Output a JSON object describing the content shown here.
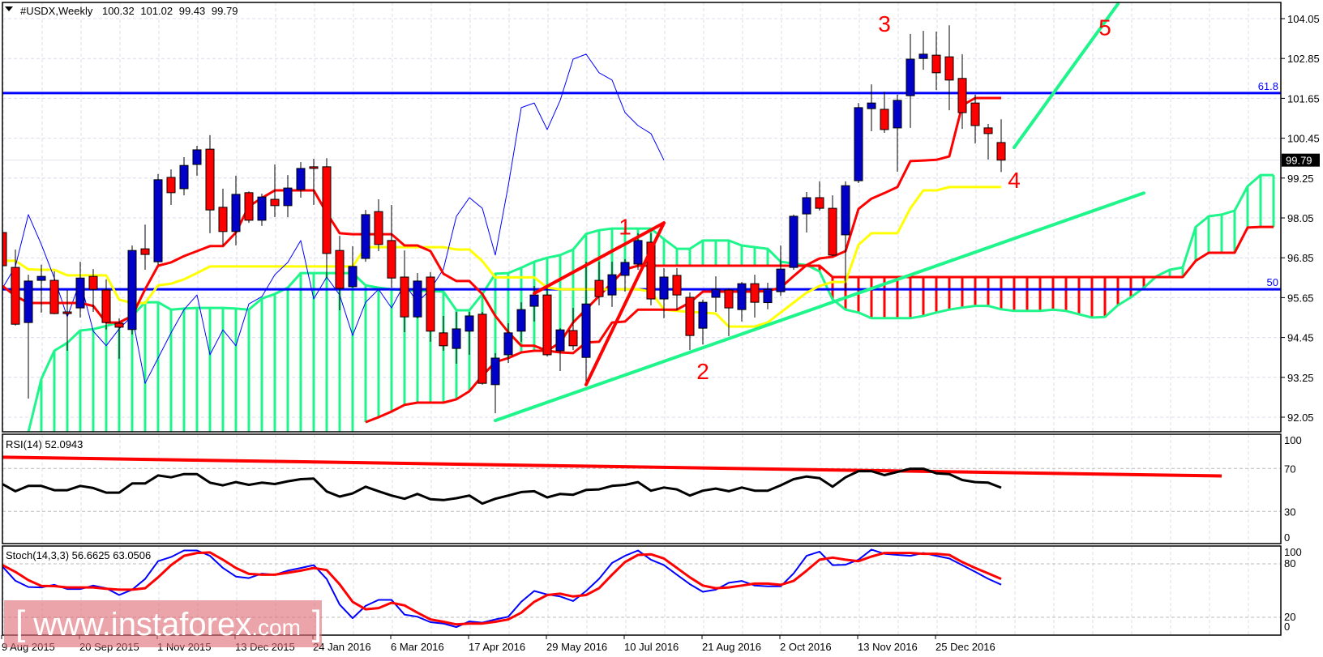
{
  "header": {
    "symbol": "#USDX,Weekly",
    "open": "100.32",
    "high": "101.02",
    "low": "99.43",
    "close": "99.79"
  },
  "rsi_panel": {
    "label": "RSI(14) 52.0943"
  },
  "stoch_panel": {
    "label": "Stoch(14,3,3) 56.6625 63.0506"
  },
  "watermark": {
    "open": "[",
    "text": "www.instaforex",
    "suffix": ".com",
    "close": "]"
  },
  "colors": {
    "bull": "#0000c8",
    "bear": "#ff0000",
    "tenkan": "#ff0000",
    "kijun": "#ffff00",
    "chikou": "#0000ff",
    "cloud_bull": "#1ef58a",
    "cloud_bear": "#ff0000",
    "level": "#0000ff",
    "rsi": "#000000",
    "stoch_k": "#0000ff",
    "stoch_d": "#ff0000"
  },
  "chart_data": {
    "type": "candlestick",
    "title": "#USDX,Weekly",
    "price_ticks": [
      "104.05",
      "102.85",
      "101.65",
      "100.45",
      "99.25",
      "98.05",
      "96.85",
      "95.65",
      "94.45",
      "93.25",
      "92.05"
    ],
    "ylim": [
      91.5,
      104.5
    ],
    "last_price": "99.79",
    "date_ticks": [
      "9 Aug 2015",
      "20 Sep 2015",
      "1 Nov 2015",
      "13 Dec 2015",
      "24 Jan 2016",
      "6 Mar 2016",
      "17 Apr 2016",
      "29 May 2016",
      "10 Jul 2016",
      "21 Aug 2016",
      "2 Oct 2016",
      "13 Nov 2016",
      "25 Dec 2016"
    ],
    "grid": true,
    "candles_columns": [
      "date",
      "open",
      "high",
      "low",
      "close"
    ],
    "candles": [
      [
        "2015-08-09",
        97.61,
        97.95,
        96.3,
        96.61
      ],
      [
        "2015-08-16",
        96.56,
        97.1,
        94.81,
        94.85
      ],
      [
        "2015-08-23",
        94.9,
        96.34,
        92.61,
        96.15
      ],
      [
        "2015-08-30",
        96.17,
        96.64,
        95.2,
        96.29
      ],
      [
        "2015-09-06",
        96.17,
        96.44,
        95.15,
        95.17
      ],
      [
        "2015-09-13",
        95.22,
        95.88,
        94.05,
        95.17
      ],
      [
        "2015-09-20",
        95.34,
        96.73,
        95.05,
        96.24
      ],
      [
        "2015-09-27",
        96.29,
        96.51,
        95.22,
        95.9
      ],
      [
        "2015-10-04",
        95.88,
        96.2,
        94.69,
        94.9
      ],
      [
        "2015-10-11",
        94.88,
        95.03,
        93.81,
        94.76
      ],
      [
        "2015-10-18",
        94.69,
        97.22,
        94.54,
        97.07
      ],
      [
        "2015-10-25",
        97.12,
        97.85,
        96.49,
        96.95
      ],
      [
        "2015-11-01",
        96.73,
        99.37,
        96.64,
        99.2
      ],
      [
        "2015-11-08",
        99.27,
        99.51,
        98.44,
        98.81
      ],
      [
        "2015-11-15",
        98.93,
        99.88,
        98.73,
        99.63
      ],
      [
        "2015-11-22",
        99.66,
        100.22,
        99.32,
        100.1
      ],
      [
        "2015-11-29",
        100.12,
        100.54,
        97.59,
        98.29
      ],
      [
        "2015-12-06",
        98.37,
        98.93,
        97.22,
        97.64
      ],
      [
        "2015-12-13",
        97.64,
        99.32,
        97.22,
        98.76
      ],
      [
        "2015-12-20",
        98.81,
        98.85,
        97.9,
        97.98
      ],
      [
        "2015-12-27",
        97.98,
        98.78,
        97.81,
        98.68
      ],
      [
        "2016-01-03",
        98.61,
        99.66,
        98.07,
        98.42
      ],
      [
        "2016-01-10",
        98.42,
        99.34,
        98.07,
        98.95
      ],
      [
        "2016-01-17",
        98.9,
        99.73,
        98.66,
        99.54
      ],
      [
        "2016-01-24",
        99.59,
        99.83,
        98.44,
        99.54
      ],
      [
        "2016-01-31",
        99.59,
        99.85,
        96.24,
        96.98
      ],
      [
        "2016-02-07",
        97.07,
        97.51,
        95.27,
        95.93
      ],
      [
        "2016-02-14",
        95.98,
        97.2,
        95.95,
        96.59
      ],
      [
        "2016-02-21",
        96.83,
        98.29,
        96.73,
        98.15
      ],
      [
        "2016-02-28",
        98.24,
        98.61,
        97.05,
        97.25
      ],
      [
        "2016-03-06",
        97.37,
        98.44,
        95.95,
        96.24
      ],
      [
        "2016-03-13",
        96.27,
        97.07,
        94.61,
        95.07
      ],
      [
        "2016-03-20",
        95.07,
        96.39,
        95.03,
        96.15
      ],
      [
        "2016-03-27",
        96.27,
        96.42,
        94.32,
        94.64
      ],
      [
        "2016-04-03",
        94.59,
        95.1,
        94.05,
        94.2
      ],
      [
        "2016-04-10",
        94.12,
        95.22,
        93.66,
        94.71
      ],
      [
        "2016-04-17",
        94.64,
        95.22,
        93.93,
        95.1
      ],
      [
        "2016-04-24",
        95.15,
        95.22,
        93.03,
        93.07
      ],
      [
        "2016-05-01",
        93.03,
        93.98,
        92.17,
        93.83
      ],
      [
        "2016-05-08",
        93.93,
        94.88,
        93.68,
        94.59
      ],
      [
        "2016-05-15",
        94.64,
        95.51,
        94.32,
        95.29
      ],
      [
        "2016-05-22",
        95.39,
        96.0,
        94.93,
        95.73
      ],
      [
        "2016-05-29",
        95.73,
        96.0,
        93.88,
        93.93
      ],
      [
        "2016-06-05",
        94.05,
        94.73,
        93.44,
        94.68
      ],
      [
        "2016-06-12",
        94.66,
        95.34,
        94.07,
        94.2
      ],
      [
        "2016-06-19",
        93.85,
        96.73,
        93.03,
        95.46
      ],
      [
        "2016-06-26",
        96.17,
        96.73,
        95.42,
        95.68
      ],
      [
        "2016-07-03",
        95.73,
        96.73,
        95.37,
        96.34
      ],
      [
        "2016-07-10",
        96.32,
        96.81,
        95.83,
        96.71
      ],
      [
        "2016-07-17",
        96.66,
        97.59,
        96.49,
        97.37
      ],
      [
        "2016-07-24",
        97.32,
        97.59,
        95.42,
        95.61
      ],
      [
        "2016-07-31",
        95.61,
        96.54,
        95.03,
        96.27
      ],
      [
        "2016-08-07",
        96.32,
        96.54,
        95.27,
        95.73
      ],
      [
        "2016-08-14",
        95.66,
        95.81,
        94.07,
        94.51
      ],
      [
        "2016-08-21",
        94.73,
        95.59,
        94.24,
        95.51
      ],
      [
        "2016-08-28",
        95.66,
        96.29,
        95.22,
        95.9
      ],
      [
        "2016-09-04",
        95.88,
        95.93,
        94.49,
        95.34
      ],
      [
        "2016-09-11",
        95.29,
        96.12,
        94.93,
        96.07
      ],
      [
        "2016-09-18",
        96.07,
        96.34,
        95.05,
        95.51
      ],
      [
        "2016-09-25",
        95.5,
        96.1,
        95.3,
        95.9
      ],
      [
        "2016-10-02",
        95.83,
        97.22,
        95.7,
        96.51
      ],
      [
        "2016-10-09",
        96.56,
        98.15,
        96.49,
        98.1
      ],
      [
        "2016-10-16",
        98.17,
        98.83,
        97.61,
        98.66
      ],
      [
        "2016-10-23",
        98.66,
        99.15,
        98.27,
        98.34
      ],
      [
        "2016-10-30",
        98.34,
        98.73,
        96.9,
        96.93
      ],
      [
        "2016-11-06",
        97.54,
        99.15,
        95.85,
        99.02
      ],
      [
        "2016-11-13",
        99.17,
        101.51,
        99.1,
        101.37
      ],
      [
        "2016-11-20",
        101.34,
        102.07,
        100.66,
        101.51
      ],
      [
        "2016-11-27",
        101.32,
        101.85,
        100.61,
        100.71
      ],
      [
        "2016-12-04",
        100.76,
        101.76,
        99.44,
        101.59
      ],
      [
        "2016-12-11",
        101.73,
        103.59,
        100.76,
        102.83
      ],
      [
        "2016-12-18",
        102.85,
        103.68,
        102.51,
        102.98
      ],
      [
        "2016-12-25",
        102.95,
        103.66,
        101.9,
        102.42
      ],
      [
        "2017-01-01",
        102.9,
        103.85,
        101.29,
        102.2
      ],
      [
        "2017-01-08",
        102.25,
        102.98,
        100.73,
        101.22
      ],
      [
        "2017-01-15",
        101.51,
        101.76,
        100.29,
        100.83
      ],
      [
        "2017-01-22",
        100.76,
        100.88,
        99.81,
        100.59
      ],
      [
        "2017-01-29",
        100.32,
        101.02,
        99.43,
        99.79
      ]
    ],
    "ichimoku": {
      "tenkan": [
        96.0,
        95.7,
        95.49,
        95.49,
        95.49,
        95.49,
        95.49,
        95.4,
        94.9,
        94.9,
        95.1,
        95.9,
        96.61,
        96.71,
        96.9,
        97.05,
        97.2,
        97.2,
        97.61,
        98.4,
        98.65,
        98.88,
        98.88,
        98.88,
        98.88,
        98.2,
        97.59,
        97.56,
        97.56,
        97.56,
        97.56,
        97.22,
        97.22,
        97.05,
        96.37,
        96.15,
        96.15,
        95.76,
        95.1,
        94.61,
        94.2,
        94.2,
        94.05,
        94.0,
        93.98,
        94.3,
        94.32,
        94.9,
        94.93,
        95.29,
        95.29,
        95.29,
        95.29,
        95.5,
        95.83,
        95.83,
        95.83,
        95.83,
        95.83,
        95.85,
        95.95,
        96.3,
        96.63,
        96.83,
        96.88,
        97.05,
        98.32,
        98.63,
        98.8,
        98.98,
        99.76,
        99.78,
        99.8,
        99.9,
        101.44,
        101.66,
        101.66,
        101.66
      ],
      "kijun": [
        96.76,
        96.76,
        96.5,
        96.49,
        96.49,
        96.32,
        96.32,
        96.32,
        96.32,
        95.59,
        95.49,
        95.49,
        96.02,
        96.07,
        96.2,
        96.39,
        96.59,
        96.59,
        96.59,
        96.59,
        96.59,
        96.59,
        96.59,
        96.59,
        96.59,
        96.59,
        96.59,
        96.59,
        97.17,
        97.17,
        97.17,
        97.17,
        97.17,
        97.17,
        97.17,
        97.1,
        97.1,
        96.75,
        96.26,
        96.26,
        96.26,
        96.26,
        95.95,
        95.9,
        95.9,
        95.9,
        95.9,
        95.9,
        95.9,
        95.9,
        95.83,
        95.29,
        95.25,
        95.22,
        95.2,
        95.17,
        94.78,
        94.78,
        94.78,
        94.9,
        95.2,
        95.5,
        95.8,
        96.0,
        96.12,
        96.12,
        97.24,
        97.59,
        97.59,
        97.59,
        98.34,
        98.88,
        98.88,
        98.98,
        98.98,
        98.98,
        98.98,
        98.98
      ],
      "senkou_a": [
        null,
        null,
        91.6,
        93.2,
        94.05,
        94.29,
        94.66,
        94.7,
        94.8,
        94.9,
        95.1,
        95.51,
        95.51,
        95.29,
        95.32,
        95.34,
        95.34,
        95.34,
        95.32,
        95.29,
        95.62,
        95.76,
        95.95,
        96.39,
        96.39,
        96.39,
        96.39,
        96.39,
        96.02,
        95.95,
        95.9,
        95.88,
        95.86,
        95.85,
        95.83,
        95.27,
        95.27,
        95.76,
        96.37,
        96.39,
        96.55,
        96.73,
        96.85,
        96.93,
        97.1,
        97.57,
        97.68,
        97.73,
        97.73,
        97.73,
        97.73,
        97.41,
        97.12,
        97.12,
        97.37,
        97.37,
        97.37,
        97.22,
        97.17,
        97.12,
        96.73,
        96.68,
        96.63,
        96.44,
        95.6,
        95.29,
        95.2,
        95.03,
        95.03,
        95.03,
        95.03,
        95.1,
        95.2,
        95.29,
        95.35,
        95.4,
        95.4,
        95.3,
        95.25,
        95.25,
        95.25,
        95.29,
        95.25,
        95.15,
        95.05,
        95.07,
        95.42,
        95.66,
        95.95,
        96.3,
        96.49,
        96.56,
        97.78,
        98.1,
        98.15,
        98.27,
        99.0,
        99.34,
        99.34
      ],
      "senkou_b": [
        null,
        null,
        null,
        null,
        null,
        null,
        null,
        null,
        null,
        null,
        null,
        null,
        null,
        null,
        null,
        null,
        null,
        null,
        null,
        null,
        null,
        null,
        null,
        null,
        null,
        null,
        null,
        null,
        91.9,
        92.05,
        92.22,
        92.42,
        92.49,
        92.49,
        92.49,
        92.59,
        92.83,
        93.3,
        93.71,
        93.83,
        94.0,
        94.05,
        94.05,
        94.3,
        94.9,
        95.3,
        95.7,
        96.1,
        96.5,
        96.61,
        96.61,
        96.61,
        96.61,
        96.61,
        96.61,
        96.61,
        96.61,
        96.61,
        96.61,
        96.61,
        96.61,
        96.61,
        96.61,
        96.61,
        96.27,
        96.27,
        96.27,
        96.27,
        96.27,
        96.27,
        96.27,
        96.27,
        96.27,
        96.27,
        96.27,
        96.27,
        96.27,
        96.27,
        96.27,
        96.27,
        96.27,
        96.27,
        96.27,
        96.27,
        96.27,
        96.27,
        96.27,
        96.27,
        96.27,
        96.27,
        96.27,
        96.27,
        96.76,
        97.0,
        97.0,
        97.0,
        97.76,
        97.78,
        97.78
      ]
    },
    "levels": [
      {
        "label": "61.8",
        "price": 101.81
      },
      {
        "label": "50",
        "price": 95.9
      }
    ],
    "trendlines": [
      {
        "color": "#1ef58a",
        "from": [
          "2016-05-01",
          91.95
        ],
        "to": [
          "2017-04-16",
          98.8
        ]
      },
      {
        "color": "#1ef58a",
        "from": [
          "2017-02-05",
          100.17
        ],
        "to": [
          "2017-04-02",
          104.49
        ]
      },
      {
        "color": "#ff0000",
        "from": [
          "2016-05-22",
          95.78
        ],
        "to": [
          "2016-07-31",
          97.9
        ]
      },
      {
        "color": "#ff0000",
        "from": [
          "2016-06-19",
          93.03
        ],
        "to": [
          "2016-07-31",
          97.9
        ]
      }
    ],
    "wave_labels": [
      {
        "text": "1",
        "date": "2016-07-10",
        "price": 97.8
      },
      {
        "text": "2",
        "date": "2016-08-21",
        "price": 93.44
      },
      {
        "text": "3",
        "date": "2016-11-27",
        "price": 103.9
      },
      {
        "text": "4",
        "date": "2017-02-05",
        "price": 99.2
      },
      {
        "text": "5",
        "date": "2017-03-26",
        "price": 103.8
      }
    ],
    "rsi": {
      "ticks": [
        "100",
        "70",
        "30",
        "0"
      ],
      "grid": [
        70,
        30
      ],
      "values": [
        55.5,
        48.75,
        53.75,
        53.75,
        49.75,
        49.75,
        53.75,
        51.75,
        47.5,
        47.5,
        56,
        56,
        63.5,
        61.75,
        64.75,
        64.75,
        56.75,
        54.25,
        57.25,
        54.75,
        56.75,
        55.5,
        58,
        60,
        60.5,
        48.5,
        43.75,
        46.75,
        53,
        48.75,
        44.75,
        41.75,
        46.25,
        41.25,
        40.5,
        42.25,
        44.75,
        37.25,
        41.75,
        44.75,
        48,
        48.75,
        43,
        46.25,
        45.5,
        50,
        50.5,
        53.75,
        54.75,
        57.25,
        49.25,
        52.25,
        50.5,
        44.75,
        49.25,
        51.25,
        48.75,
        52.25,
        49.25,
        49.25,
        54.25,
        60,
        62.5,
        61,
        53,
        61.75,
        67.5,
        67.5,
        63.75,
        66.75,
        69.75,
        69.75,
        65.5,
        64.75,
        59.25,
        57.25,
        56.75,
        52.09
      ],
      "trendline": {
        "from": [
          "2015-08-09",
          80.5
        ],
        "to": [
          "2017-05-28",
          63
        ]
      }
    },
    "stochastic": {
      "ticks": [
        "100",
        "80",
        "20",
        "0"
      ],
      "grid": [
        80,
        20
      ],
      "k": [
        77,
        61,
        54,
        53.5,
        56.5,
        51.7,
        51.7,
        55.6,
        52.6,
        45,
        51,
        63,
        83,
        87.6,
        95,
        95,
        89,
        75.4,
        65.7,
        64,
        69,
        67.8,
        72.4,
        75.4,
        78.5,
        63,
        34.3,
        19,
        32.8,
        39.5,
        39.5,
        23,
        20.6,
        14.5,
        13,
        9,
        15.4,
        14,
        17.6,
        20.6,
        37.4,
        49.5,
        45.6,
        43.4,
        38.3,
        49.5,
        63.2,
        81,
        89,
        95,
        84.6,
        78.5,
        67.8,
        57.2,
        48.6,
        51,
        58.7,
        60.8,
        55.6,
        54.7,
        54.7,
        69.3,
        89,
        93.7,
        78.5,
        79,
        84.6,
        96,
        91.3,
        90,
        89,
        92.2,
        89,
        86,
        78.5,
        71,
        63.2,
        56.66
      ],
      "d": [
        78.5,
        71,
        61.7,
        55.3,
        55,
        53.5,
        53.5,
        53.5,
        52,
        51,
        51,
        52.6,
        64.8,
        78.5,
        89,
        92.2,
        92.8,
        84.6,
        75.4,
        68.7,
        67.8,
        67.8,
        70,
        72.4,
        75.4,
        73,
        57,
        37.4,
        29,
        30.4,
        36.4,
        33.4,
        25.2,
        17.6,
        15,
        12,
        13,
        13,
        15,
        17.6,
        25.2,
        37.4,
        45,
        46.5,
        43.4,
        45,
        52.6,
        67.8,
        82,
        90,
        90.7,
        86,
        75.4,
        64.8,
        55.6,
        52.6,
        53.5,
        55.6,
        57.8,
        57.8,
        56.5,
        60.8,
        72.4,
        84.6,
        87,
        84.6,
        83,
        88.2,
        92.2,
        92.2,
        92.2,
        91.3,
        91.3,
        90,
        82,
        75.4,
        69.3,
        63.05
      ]
    }
  }
}
